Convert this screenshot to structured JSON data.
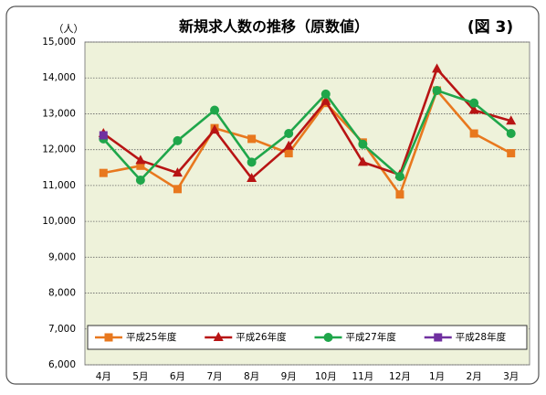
{
  "chart_data": {
    "type": "line",
    "title": "新規求人数の推移（原数値）",
    "figure_label": "(図 3)",
    "y_unit": "（人）",
    "categories": [
      "4月",
      "5月",
      "6月",
      "7月",
      "8月",
      "9月",
      "10月",
      "11月",
      "12月",
      "1月",
      "2月",
      "3月"
    ],
    "series": [
      {
        "name": "平成25年度",
        "color": "#e8781e",
        "marker": "square",
        "values": [
          11350,
          11550,
          10900,
          12600,
          12300,
          11900,
          13300,
          12200,
          10750,
          13650,
          12450,
          11900
        ]
      },
      {
        "name": "平成26年度",
        "color": "#b81414",
        "marker": "triangle",
        "values": [
          12450,
          11700,
          11350,
          12550,
          11200,
          12100,
          13350,
          11650,
          11300,
          14250,
          13100,
          12800
        ]
      },
      {
        "name": "平成27年度",
        "color": "#1fa64a",
        "marker": "circle",
        "values": [
          12300,
          11150,
          12250,
          13100,
          11650,
          12450,
          13550,
          12150,
          11250,
          13650,
          13300,
          12450
        ]
      },
      {
        "name": "平成28年度",
        "color": "#7030a0",
        "marker": "square",
        "values": [
          12400,
          null,
          null,
          null,
          null,
          null,
          null,
          null,
          null,
          null,
          null,
          null
        ]
      }
    ],
    "ylim": [
      6000,
      15000
    ],
    "yticks": [
      {
        "value": 6000,
        "label": "6,000"
      },
      {
        "value": 7000,
        "label": "7,000"
      },
      {
        "value": 8000,
        "label": "8,000"
      },
      {
        "value": 9000,
        "label": "9,000"
      },
      {
        "value": 10000,
        "label": "10,000"
      },
      {
        "value": 11000,
        "label": "11,000"
      },
      {
        "value": 12000,
        "label": "12,000"
      },
      {
        "value": 13000,
        "label": "13,000"
      },
      {
        "value": 14000,
        "label": "14,000"
      },
      {
        "value": 15000,
        "label": "15,000"
      }
    ],
    "grid": true
  }
}
